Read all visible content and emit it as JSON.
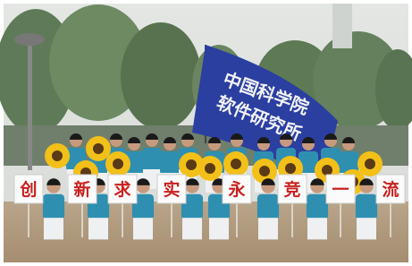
{
  "banner": {
    "lines": [
      "中国科学院",
      "软件研究所"
    ]
  },
  "signs": [
    "创",
    "新",
    "求",
    "实",
    "永",
    "竞",
    "一",
    "流"
  ]
}
